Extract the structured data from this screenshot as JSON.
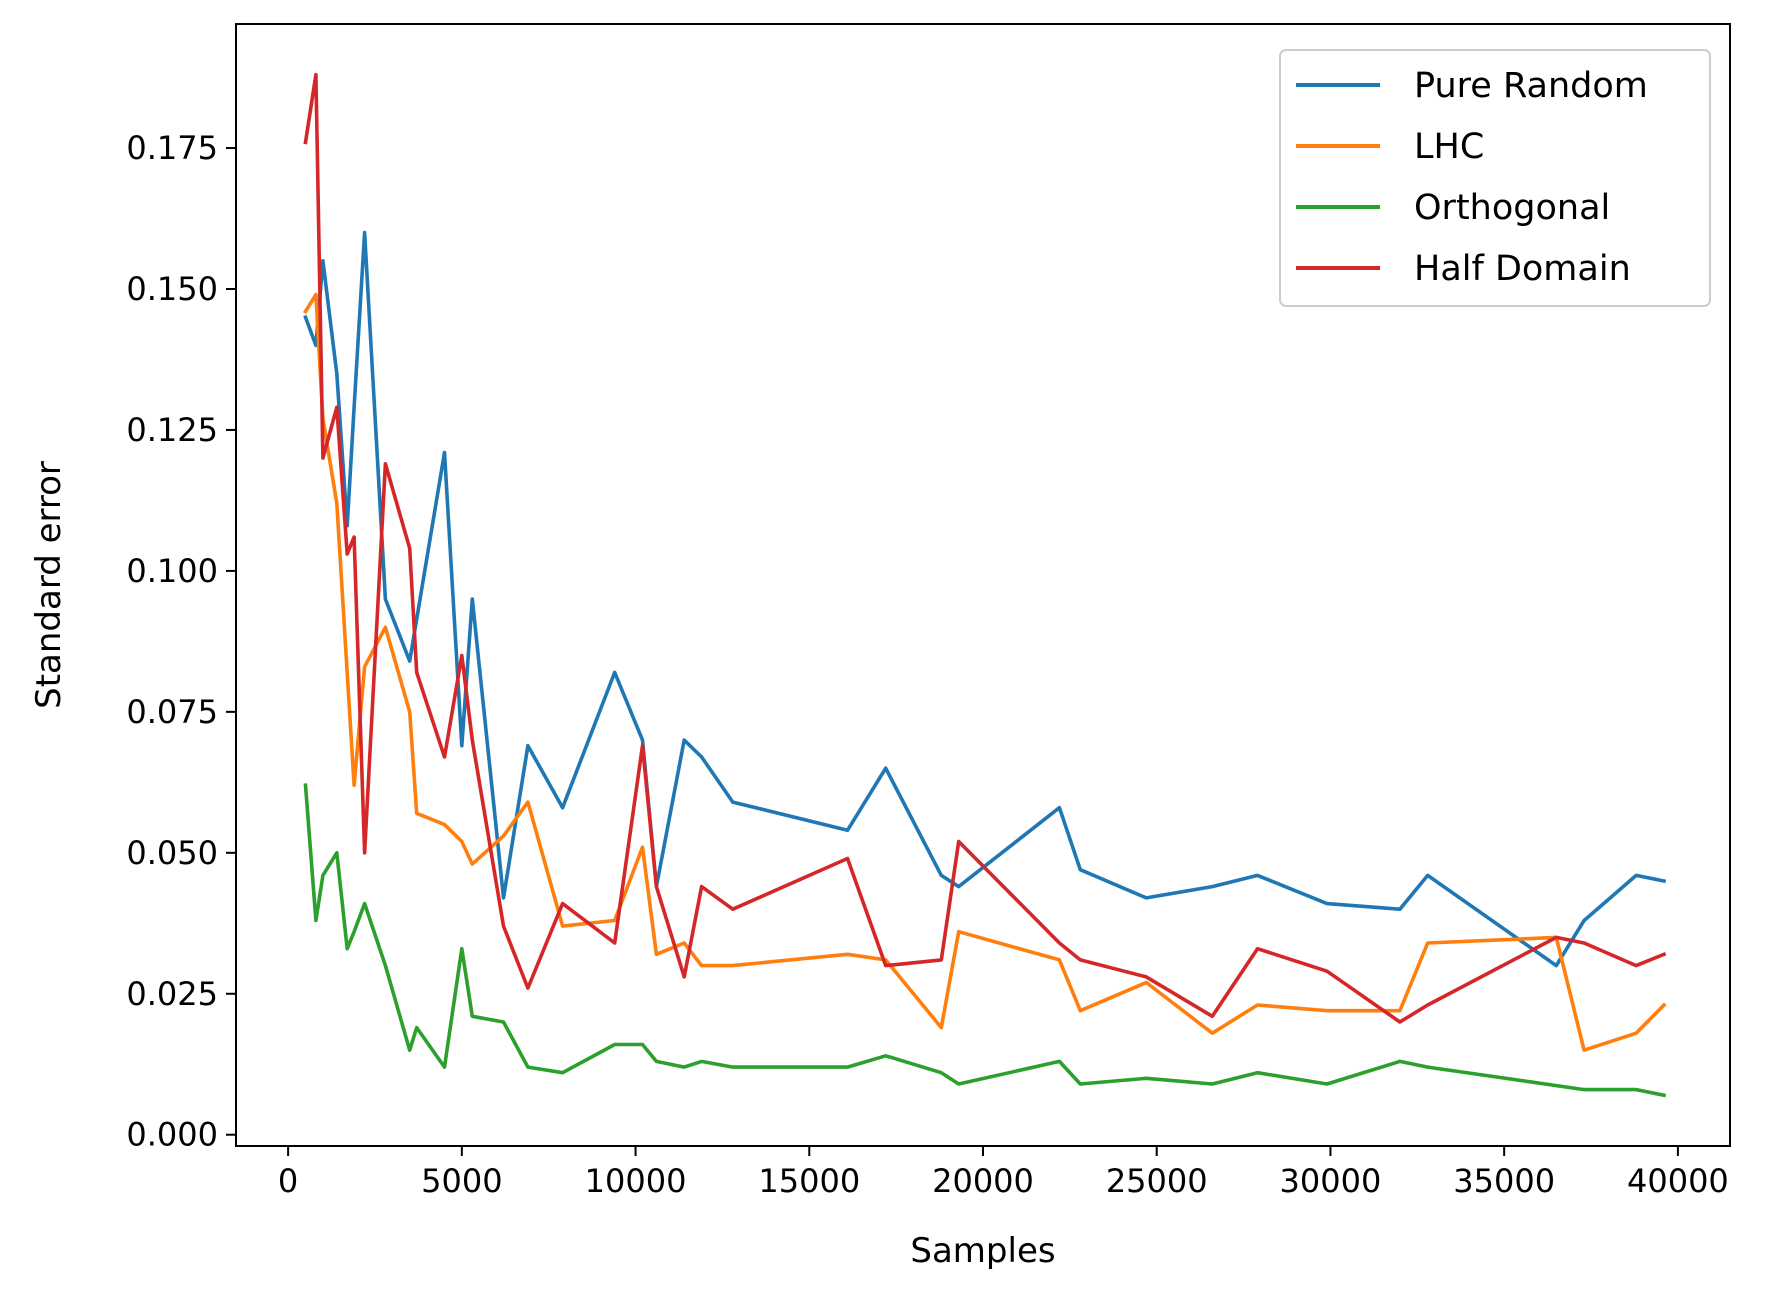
{
  "chart_data": {
    "type": "line",
    "title": "",
    "xlabel": "Samples",
    "ylabel": "Standard error",
    "xlim": [
      -1500,
      41500
    ],
    "ylim": [
      -0.002,
      0.197
    ],
    "xticks": [
      0,
      5000,
      10000,
      15000,
      20000,
      25000,
      30000,
      35000,
      40000
    ],
    "xtick_labels": [
      "0",
      "5000",
      "10000",
      "15000",
      "20000",
      "25000",
      "30000",
      "35000",
      "40000"
    ],
    "yticks": [
      0.0,
      0.025,
      0.05,
      0.075,
      0.1,
      0.125,
      0.15,
      0.175
    ],
    "ytick_labels": [
      "0.000",
      "0.025",
      "0.050",
      "0.075",
      "0.100",
      "0.125",
      "0.150",
      "0.175"
    ],
    "grid": false,
    "legend_position": "top-right",
    "series": [
      {
        "name": "Pure Random",
        "color": "#1f77b4",
        "x": [
          500,
          800,
          1000,
          1400,
          1700,
          1900,
          2200,
          2800,
          3500,
          4500,
          5000,
          5300,
          6200,
          6900,
          7900,
          9400,
          10200,
          10600,
          11400,
          11900,
          12800,
          16100,
          17200,
          18800,
          19300,
          22200,
          22800,
          24700,
          26600,
          27900,
          29900,
          32000,
          32800,
          36500,
          37300,
          38800,
          39600
        ],
        "y": [
          0.145,
          0.14,
          0.155,
          0.135,
          0.108,
          0.129,
          0.16,
          0.095,
          0.084,
          0.121,
          0.069,
          0.095,
          0.042,
          0.069,
          0.058,
          0.082,
          0.07,
          0.044,
          0.07,
          0.067,
          0.059,
          0.054,
          0.065,
          0.046,
          0.044,
          0.058,
          0.047,
          0.042,
          0.044,
          0.046,
          0.041,
          0.04,
          0.046,
          0.03,
          0.038,
          0.046,
          0.045
        ]
      },
      {
        "name": "LHC",
        "color": "#ff7f0e",
        "x": [
          500,
          800,
          1000,
          1400,
          1900,
          2200,
          2800,
          3500,
          3700,
          4500,
          5000,
          5300,
          6200,
          6900,
          7900,
          9400,
          10200,
          10600,
          11400,
          11900,
          12800,
          16100,
          17200,
          18800,
          19300,
          22200,
          22800,
          24700,
          26600,
          27900,
          29900,
          32000,
          32800,
          36500,
          37300,
          38800,
          39600
        ],
        "y": [
          0.146,
          0.149,
          0.127,
          0.112,
          0.062,
          0.083,
          0.09,
          0.075,
          0.057,
          0.055,
          0.052,
          0.048,
          0.053,
          0.059,
          0.037,
          0.038,
          0.051,
          0.032,
          0.034,
          0.03,
          0.03,
          0.032,
          0.031,
          0.019,
          0.036,
          0.031,
          0.022,
          0.027,
          0.018,
          0.023,
          0.022,
          0.022,
          0.034,
          0.035,
          0.015,
          0.018,
          0.023
        ]
      },
      {
        "name": "Orthogonal",
        "color": "#2ca02c",
        "x": [
          500,
          800,
          1000,
          1400,
          1700,
          1900,
          2200,
          2800,
          3500,
          3700,
          4500,
          5000,
          5300,
          6200,
          6900,
          7900,
          9400,
          10200,
          10600,
          11400,
          11900,
          12800,
          16100,
          17200,
          18800,
          19300,
          22200,
          22800,
          24700,
          26600,
          27900,
          29900,
          32000,
          32800,
          37300,
          38800,
          39600
        ],
        "y": [
          0.062,
          0.038,
          0.046,
          0.05,
          0.033,
          0.036,
          0.041,
          0.03,
          0.015,
          0.019,
          0.012,
          0.033,
          0.021,
          0.02,
          0.012,
          0.011,
          0.016,
          0.016,
          0.013,
          0.012,
          0.013,
          0.012,
          0.012,
          0.014,
          0.011,
          0.009,
          0.013,
          0.009,
          0.01,
          0.009,
          0.011,
          0.009,
          0.013,
          0.012,
          0.008,
          0.008,
          0.007
        ]
      },
      {
        "name": "Half Domain",
        "color": "#d62728",
        "x": [
          500,
          800,
          1000,
          1400,
          1700,
          1900,
          2200,
          2800,
          3500,
          3700,
          4500,
          5000,
          5300,
          6200,
          6900,
          7900,
          9400,
          10200,
          10600,
          11400,
          11900,
          12800,
          16100,
          17200,
          18800,
          19300,
          22200,
          22800,
          24700,
          26600,
          27900,
          29900,
          32000,
          32800,
          36500,
          37300,
          38800,
          39600
        ],
        "y": [
          0.176,
          0.188,
          0.12,
          0.129,
          0.103,
          0.106,
          0.05,
          0.119,
          0.104,
          0.082,
          0.067,
          0.085,
          0.07,
          0.037,
          0.026,
          0.041,
          0.034,
          0.069,
          0.044,
          0.028,
          0.044,
          0.04,
          0.049,
          0.03,
          0.031,
          0.052,
          0.034,
          0.031,
          0.028,
          0.021,
          0.033,
          0.029,
          0.02,
          0.023,
          0.035,
          0.034,
          0.03,
          0.032
        ]
      }
    ]
  }
}
